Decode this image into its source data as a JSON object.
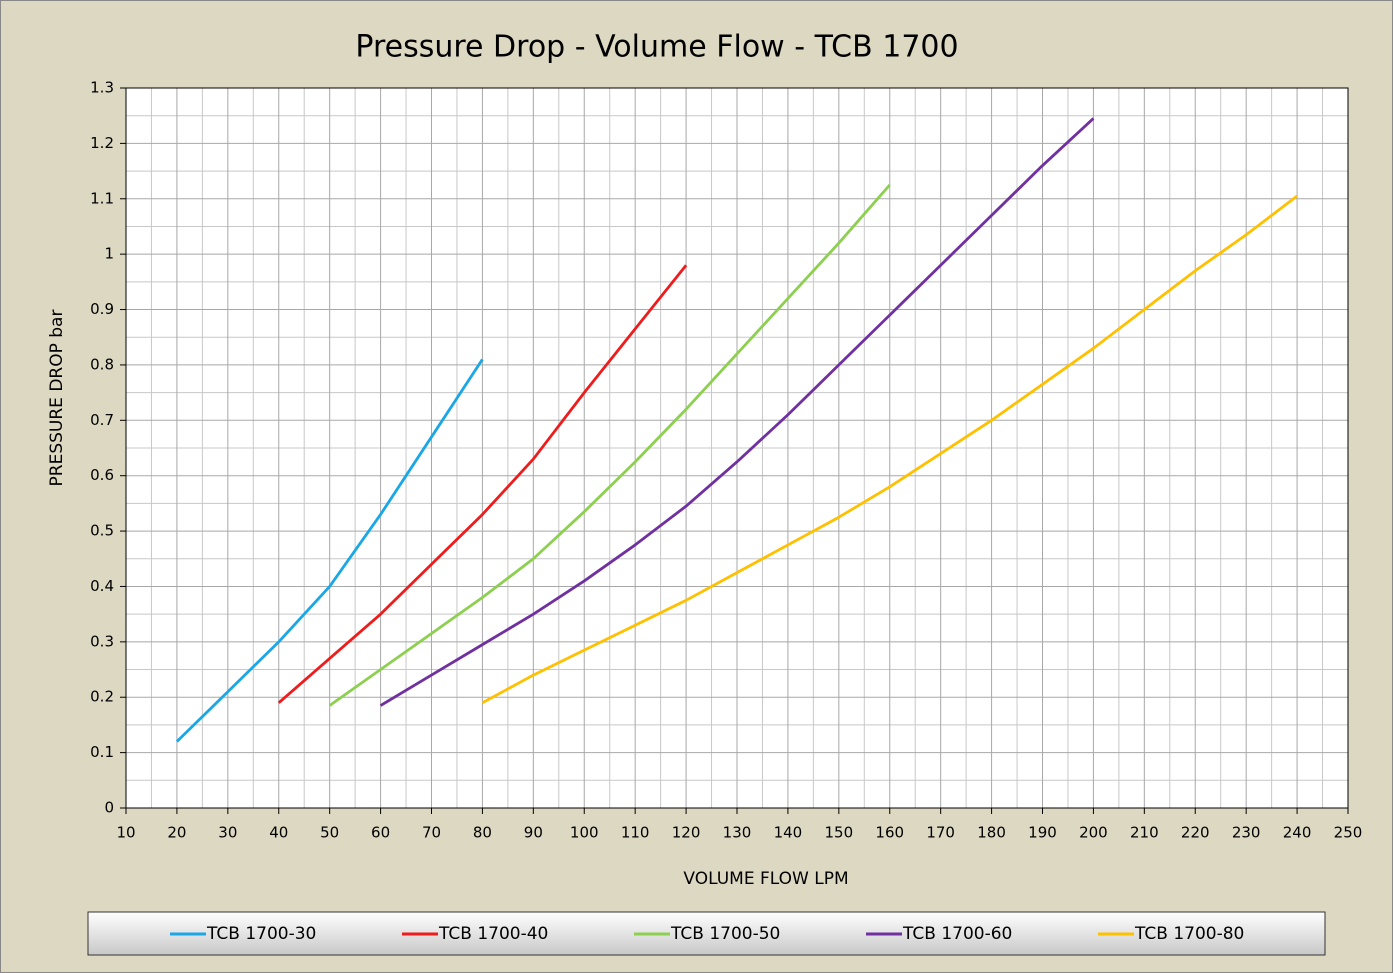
{
  "chart_data": {
    "type": "line",
    "title": "Pressure Drop - Volume Flow - TCB 1700",
    "x_label": "VOLUME FLOW LPM",
    "y_label": "PRESSURE DROP bar",
    "xlim": [
      10,
      250
    ],
    "ylim": [
      0,
      1.3
    ],
    "xticks": [
      10,
      20,
      30,
      40,
      50,
      60,
      70,
      80,
      90,
      100,
      110,
      120,
      130,
      140,
      150,
      160,
      170,
      180,
      190,
      200,
      210,
      220,
      230,
      240,
      250
    ],
    "yticks": [
      0,
      0.1,
      0.2,
      0.3,
      0.4,
      0.5,
      0.6,
      0.7,
      0.8,
      0.9,
      1,
      1.1,
      1.2,
      1.3
    ],
    "grid": true,
    "minor_grid": true,
    "legend": "bottom",
    "series": [
      {
        "name": "TCB 1700-30",
        "color": "#1aa7e6",
        "x": [
          20,
          30,
          40,
          50,
          60,
          70,
          80
        ],
        "values": [
          0.12,
          0.21,
          0.3,
          0.4,
          0.53,
          0.67,
          0.81
        ]
      },
      {
        "name": "TCB 1700-40",
        "color": "#ee1c1c",
        "x": [
          40,
          50,
          60,
          70,
          80,
          90,
          100,
          110,
          120
        ],
        "values": [
          0.19,
          0.27,
          0.35,
          0.44,
          0.53,
          0.63,
          0.75,
          0.865,
          0.98
        ]
      },
      {
        "name": "TCB 1700-50",
        "color": "#8dcf4f",
        "x": [
          50,
          60,
          70,
          80,
          90,
          100,
          110,
          120,
          130,
          140,
          150,
          160
        ],
        "values": [
          0.185,
          0.25,
          0.315,
          0.38,
          0.45,
          0.535,
          0.625,
          0.72,
          0.82,
          0.92,
          1.02,
          1.125
        ]
      },
      {
        "name": "TCB 1700-60",
        "color": "#7030a0",
        "x": [
          60,
          70,
          80,
          90,
          100,
          110,
          120,
          130,
          140,
          150,
          160,
          170,
          180,
          190,
          200
        ],
        "values": [
          0.185,
          0.24,
          0.295,
          0.35,
          0.41,
          0.475,
          0.545,
          0.625,
          0.71,
          0.8,
          0.89,
          0.98,
          1.07,
          1.16,
          1.245
        ]
      },
      {
        "name": "TCB 1700-80",
        "color": "#ffc000",
        "x": [
          80,
          90,
          100,
          110,
          120,
          130,
          140,
          150,
          160,
          170,
          180,
          190,
          200,
          210,
          220,
          230,
          240
        ],
        "values": [
          0.19,
          0.24,
          0.285,
          0.33,
          0.375,
          0.425,
          0.475,
          0.525,
          0.58,
          0.64,
          0.7,
          0.765,
          0.83,
          0.9,
          0.97,
          1.035,
          1.105
        ]
      }
    ]
  }
}
